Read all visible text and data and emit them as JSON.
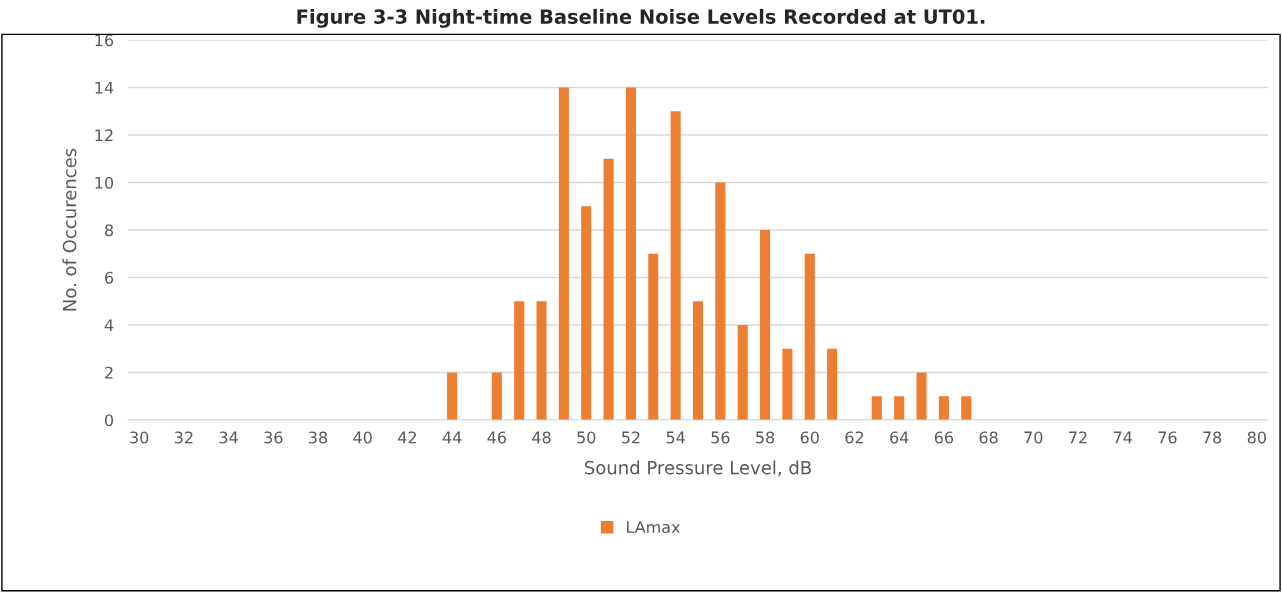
{
  "chart_data": {
    "type": "bar",
    "title": "Figure 3-3 Night-time Baseline Noise Levels Recorded at UT01.",
    "categories": [
      "30",
      null,
      "32",
      null,
      "34",
      null,
      "36",
      null,
      "38",
      null,
      "40",
      null,
      "42",
      null,
      "44",
      null,
      "46",
      null,
      "48",
      null,
      "50",
      null,
      "52",
      null,
      "54",
      null,
      "56",
      null,
      "58",
      null,
      "60",
      null,
      "62",
      null,
      "64",
      null,
      "66",
      null,
      "68",
      null,
      "70",
      null,
      "72",
      null,
      "74",
      null,
      "76",
      null,
      "78",
      null,
      "80"
    ],
    "series": [
      {
        "name": "LAmax",
        "color": "#ed7d31",
        "values": [
          0,
          0,
          0,
          0,
          0,
          0,
          0,
          0,
          0,
          0,
          0,
          0,
          0,
          0,
          2,
          0,
          2,
          5,
          5,
          14,
          9,
          11,
          14,
          7,
          13,
          5,
          10,
          4,
          8,
          3,
          7,
          3,
          0,
          1,
          1,
          2,
          1,
          1,
          0,
          0,
          0,
          0,
          0,
          0,
          0,
          0,
          0,
          0,
          0,
          0,
          0
        ]
      }
    ],
    "xlabel": "Sound Pressure Level, dB",
    "ylabel": "No. of Occurences",
    "ylim": [
      0,
      16
    ],
    "yticks": [
      0,
      2,
      4,
      6,
      8,
      10,
      12,
      14,
      16
    ],
    "grid": "y",
    "legend": "bottom"
  }
}
